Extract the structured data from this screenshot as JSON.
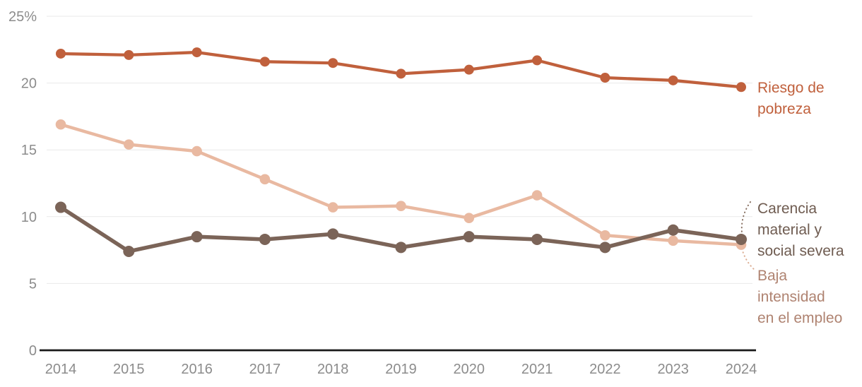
{
  "chart_data": {
    "type": "line",
    "title": "",
    "x": [
      "2014",
      "2015",
      "2016",
      "2017",
      "2018",
      "2019",
      "2020",
      "2021",
      "2022",
      "2023",
      "2024"
    ],
    "xlabel": "",
    "ylabel": "",
    "ylim": [
      0,
      25
    ],
    "yticks": [
      0,
      5,
      10,
      15,
      20,
      25
    ],
    "ytick_labels": [
      "0",
      "5",
      "10",
      "15",
      "20",
      "25%"
    ],
    "grid": "horizontal",
    "legend_position": "right-direct-labels",
    "background_color": "#ffffff",
    "axis_text_color": "#8C8C8C",
    "grid_color": "#E9E9E9",
    "baseline_color": "#1A1A1A",
    "series": [
      {
        "name": "Riesgo de pobreza",
        "label_lines": [
          "Riesgo de",
          "pobreza"
        ],
        "color": "#C0603C",
        "label_color": "#C0603C",
        "values": [
          22.2,
          22.1,
          22.3,
          21.6,
          21.5,
          20.7,
          21.0,
          21.7,
          20.4,
          20.2,
          19.7
        ]
      },
      {
        "name": "Baja intensidad en el empleo",
        "label_lines": [
          "Baja",
          "intensidad",
          "en el empleo"
        ],
        "color": "#E9B9A1",
        "label_color": "#AF8371",
        "leader_color": "#DCAE94",
        "values": [
          16.9,
          15.4,
          14.9,
          12.8,
          10.7,
          10.8,
          9.9,
          11.6,
          8.6,
          8.2,
          7.9
        ]
      },
      {
        "name": "Carencia material y social severa",
        "label_lines": [
          "Carencia",
          "material y",
          "social severa"
        ],
        "color": "#7B6458",
        "label_color": "#6F5C51",
        "leader_color": "#8A7365",
        "values": [
          10.7,
          7.4,
          8.5,
          8.3,
          8.7,
          7.7,
          8.5,
          8.3,
          7.7,
          9.0,
          8.3
        ]
      }
    ]
  }
}
